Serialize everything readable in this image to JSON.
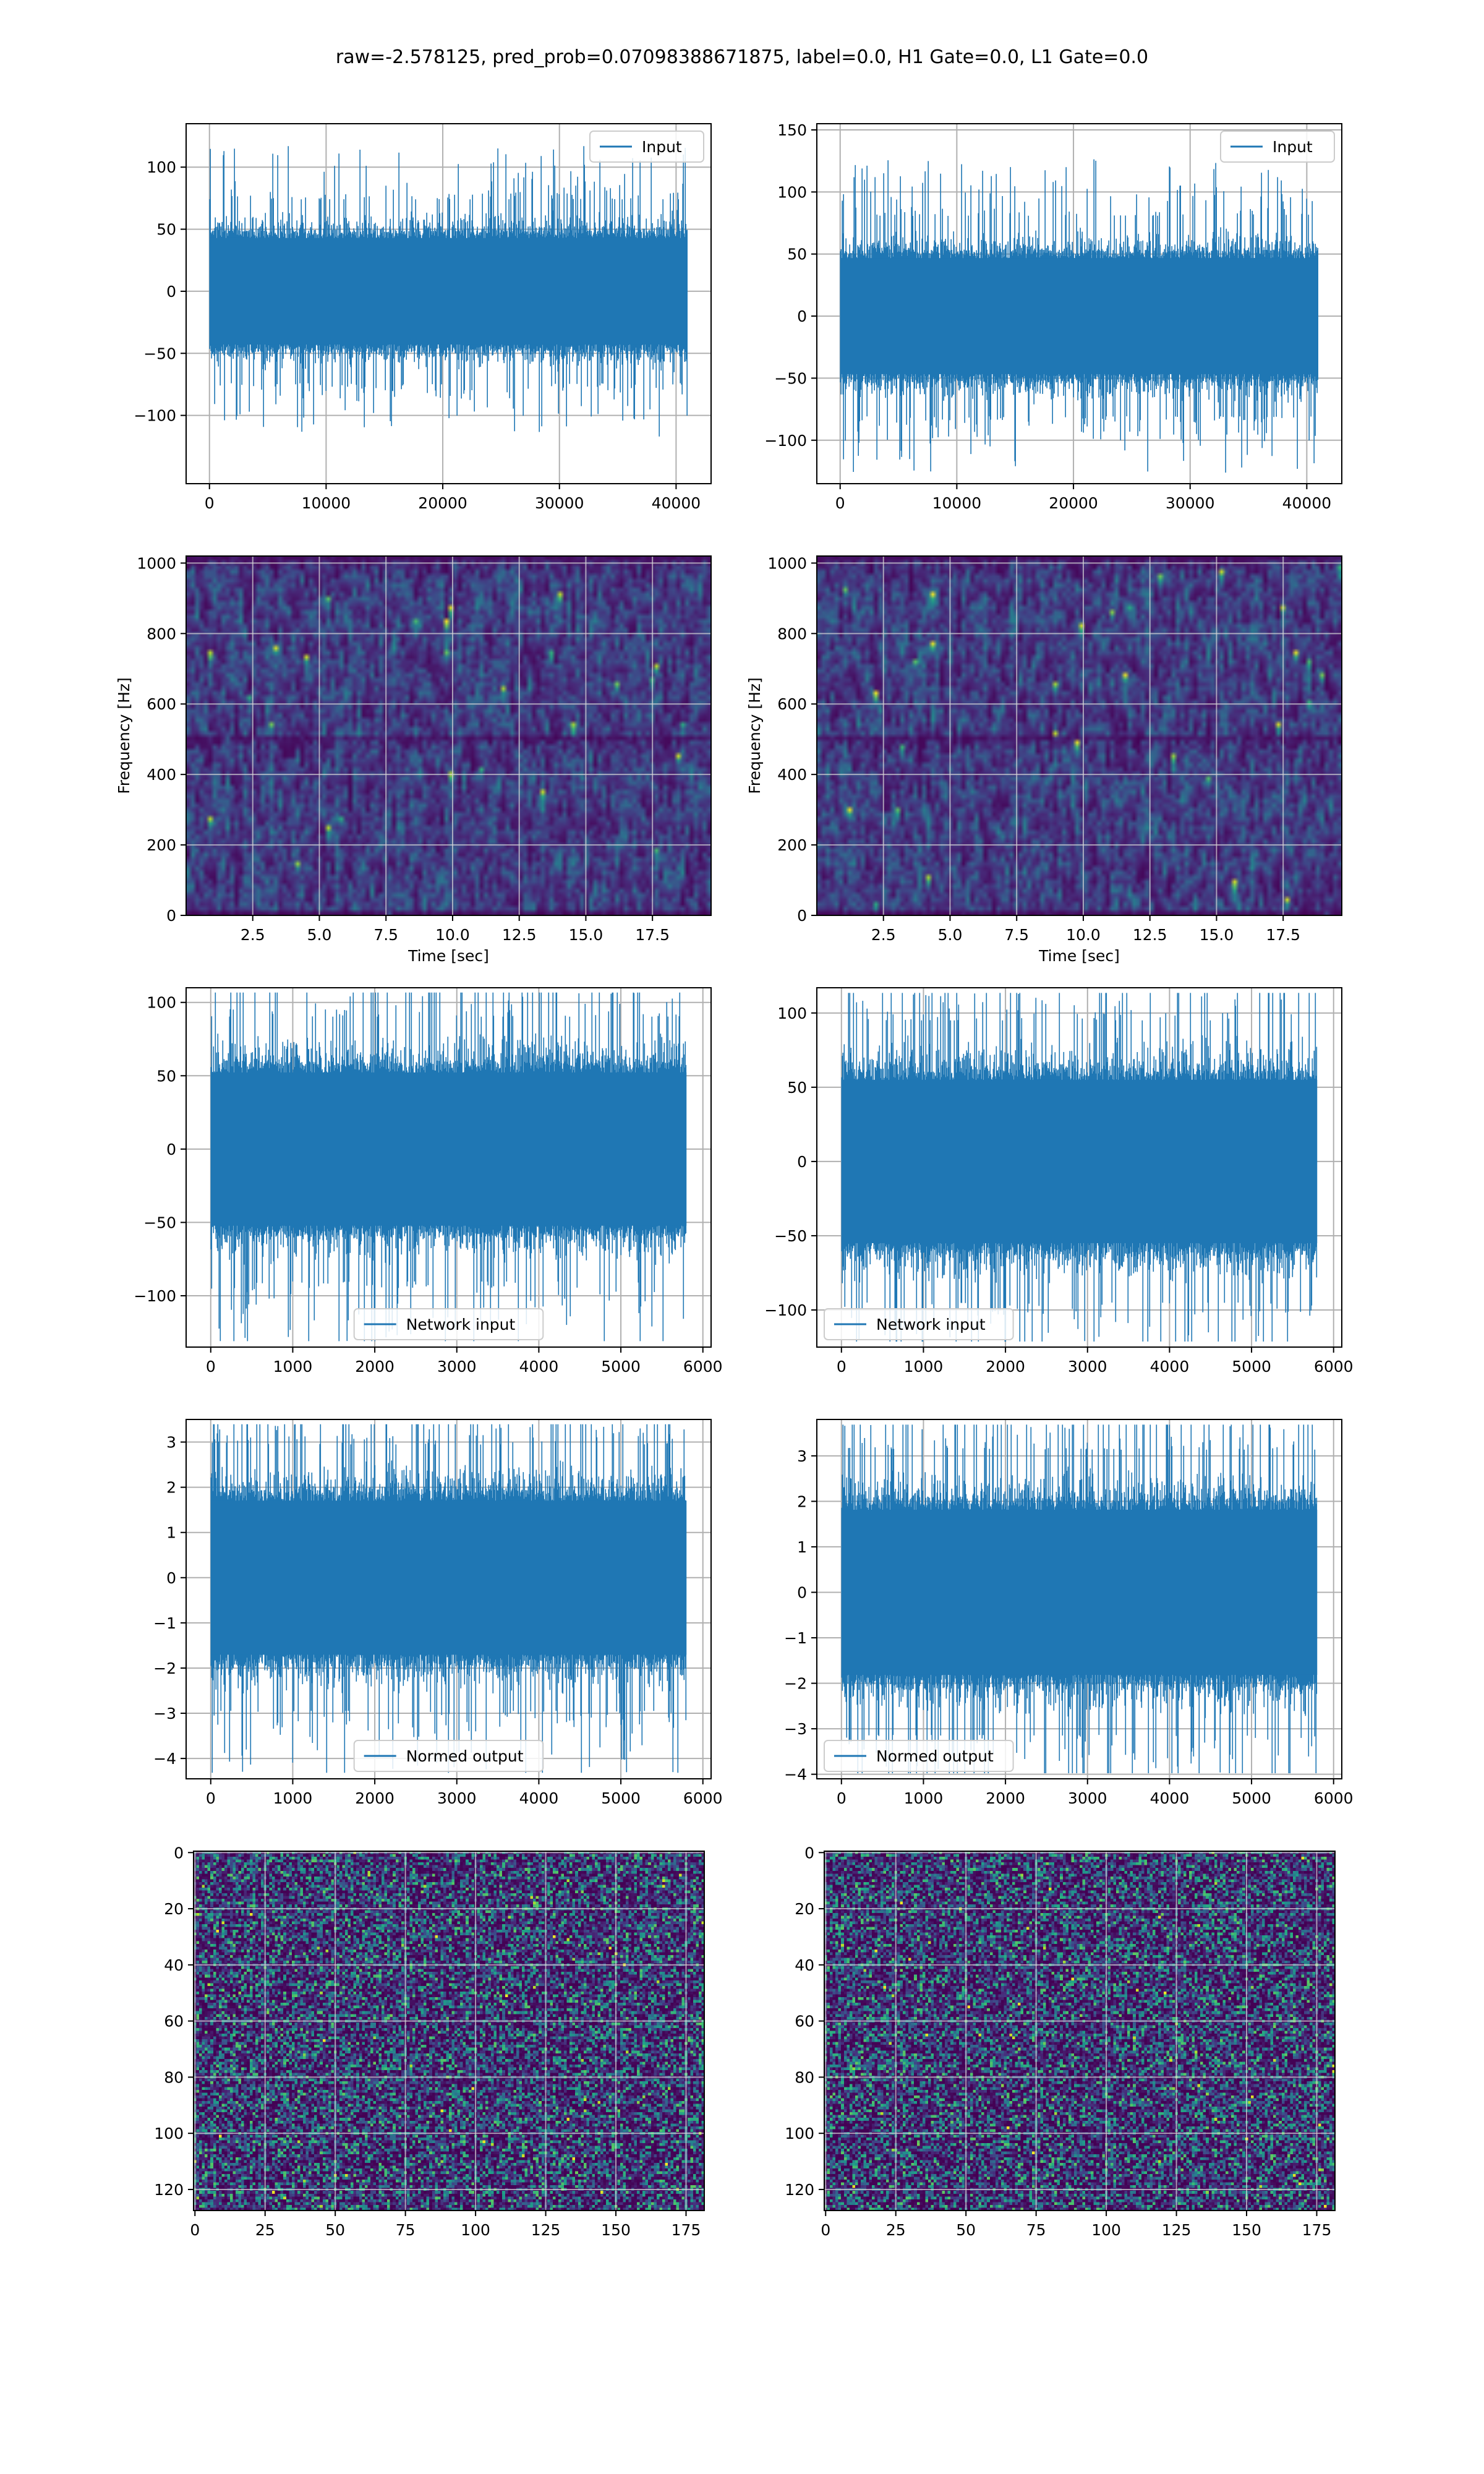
{
  "figure": {
    "title": "raw=-2.578125, pred_prob=0.07098388671875, label=0.0, H1 Gate=0.0, L1 Gate=0.0"
  },
  "colors": {
    "line": "#1f77b4",
    "grid": "#b0b0b0",
    "viridis": [
      "#440154",
      "#482878",
      "#3e4989",
      "#31688e",
      "#26828e",
      "#1f9e89",
      "#35b779",
      "#6ece58",
      "#b5de2b",
      "#fde725"
    ]
  },
  "chart_data": [
    {
      "id": "input-h1",
      "type": "line",
      "legend": "top-right",
      "series": [
        {
          "name": "Input",
          "n_points": 40960
        }
      ],
      "xlim": [
        -2000,
        43000
      ],
      "ylim": [
        -155,
        135
      ],
      "xticks": [
        0,
        10000,
        20000,
        30000,
        40000
      ],
      "yticks": [
        -100,
        -50,
        0,
        50,
        100
      ],
      "xlabel": "",
      "ylabel": "",
      "grid": true,
      "amp": 78
    },
    {
      "id": "input-l1",
      "type": "line",
      "legend": "top-right",
      "series": [
        {
          "name": "Input",
          "n_points": 40960
        }
      ],
      "xlim": [
        -2000,
        43000
      ],
      "ylim": [
        -135,
        155
      ],
      "xticks": [
        0,
        10000,
        20000,
        30000,
        40000
      ],
      "yticks": [
        -100,
        -50,
        0,
        50,
        100,
        150
      ],
      "xlabel": "",
      "ylabel": "",
      "grid": true,
      "amp": 85
    },
    {
      "id": "spec-h1",
      "type": "heatmap",
      "cmap": "viridis",
      "xlim": [
        0,
        19.7
      ],
      "ylim": [
        0,
        1020
      ],
      "xticks": [
        2.5,
        5.0,
        7.5,
        10.0,
        12.5,
        15.0,
        17.5
      ],
      "yticks": [
        0,
        200,
        400,
        600,
        800,
        1000
      ],
      "xlabel": "Time [sec]",
      "ylabel": "Frequency [Hz]",
      "grid": true
    },
    {
      "id": "spec-l1",
      "type": "heatmap",
      "cmap": "viridis",
      "xlim": [
        0,
        19.7
      ],
      "ylim": [
        0,
        1020
      ],
      "xticks": [
        2.5,
        5.0,
        7.5,
        10.0,
        12.5,
        15.0,
        17.5
      ],
      "yticks": [
        0,
        200,
        400,
        600,
        800,
        1000
      ],
      "xlabel": "Time [sec]",
      "ylabel": "Frequency [Hz]",
      "grid": true
    },
    {
      "id": "netin-h1",
      "type": "line",
      "legend": "bottom-center",
      "series": [
        {
          "name": "Network input",
          "n_points": 5800
        }
      ],
      "xlim": [
        -300,
        6100
      ],
      "ylim": [
        -135,
        110
      ],
      "xticks": [
        0,
        1000,
        2000,
        3000,
        4000,
        5000,
        6000
      ],
      "yticks": [
        -100,
        -50,
        0,
        50,
        100
      ],
      "xlabel": "",
      "ylabel": "",
      "grid": true,
      "amp": 95
    },
    {
      "id": "netin-l1",
      "type": "line",
      "legend": "bottom-left",
      "series": [
        {
          "name": "Network input",
          "n_points": 5800
        }
      ],
      "xlim": [
        -300,
        6100
      ],
      "ylim": [
        -125,
        117
      ],
      "xticks": [
        0,
        1000,
        2000,
        3000,
        4000,
        5000,
        6000
      ],
      "yticks": [
        -100,
        -50,
        0,
        50,
        100
      ],
      "xlabel": "",
      "ylabel": "",
      "grid": true,
      "amp": 100
    },
    {
      "id": "normed-h1",
      "type": "line",
      "legend": "bottom-center",
      "series": [
        {
          "name": "Normed output",
          "n_points": 5800
        }
      ],
      "xlim": [
        -300,
        6100
      ],
      "ylim": [
        -4.45,
        3.5
      ],
      "xticks": [
        0,
        1000,
        2000,
        3000,
        4000,
        5000,
        6000
      ],
      "yticks": [
        -4,
        -3,
        -2,
        -1,
        0,
        1,
        2,
        3
      ],
      "xlabel": "",
      "ylabel": "",
      "grid": true,
      "amp": 3.1
    },
    {
      "id": "normed-l1",
      "type": "line",
      "legend": "bottom-left",
      "series": [
        {
          "name": "Normed output",
          "n_points": 5800
        }
      ],
      "xlim": [
        -300,
        6100
      ],
      "ylim": [
        -4.1,
        3.8
      ],
      "xticks": [
        0,
        1000,
        2000,
        3000,
        4000,
        5000,
        6000
      ],
      "yticks": [
        -4,
        -3,
        -2,
        -1,
        0,
        1,
        2,
        3
      ],
      "xlabel": "",
      "ylabel": "",
      "grid": true,
      "amp": 3.3
    },
    {
      "id": "matrix-h1",
      "type": "heatmap",
      "cmap": "viridis",
      "origin": "upper",
      "xlim": [
        -0.5,
        181.5
      ],
      "ylim": [
        -0.5,
        127.5
      ],
      "xticks": [
        0,
        25,
        50,
        75,
        100,
        125,
        150,
        175
      ],
      "yticks": [
        0,
        20,
        40,
        60,
        80,
        100,
        120
      ],
      "xlabel": "",
      "ylabel": "",
      "grid": true,
      "shape": [
        128,
        182
      ]
    },
    {
      "id": "matrix-l1",
      "type": "heatmap",
      "cmap": "viridis",
      "origin": "upper",
      "xlim": [
        -0.5,
        181.5
      ],
      "ylim": [
        -0.5,
        127.5
      ],
      "xticks": [
        0,
        25,
        50,
        75,
        100,
        125,
        150,
        175
      ],
      "yticks": [
        0,
        20,
        40,
        60,
        80,
        100,
        120
      ],
      "xlabel": "",
      "ylabel": "",
      "grid": true,
      "shape": [
        128,
        182
      ]
    }
  ]
}
